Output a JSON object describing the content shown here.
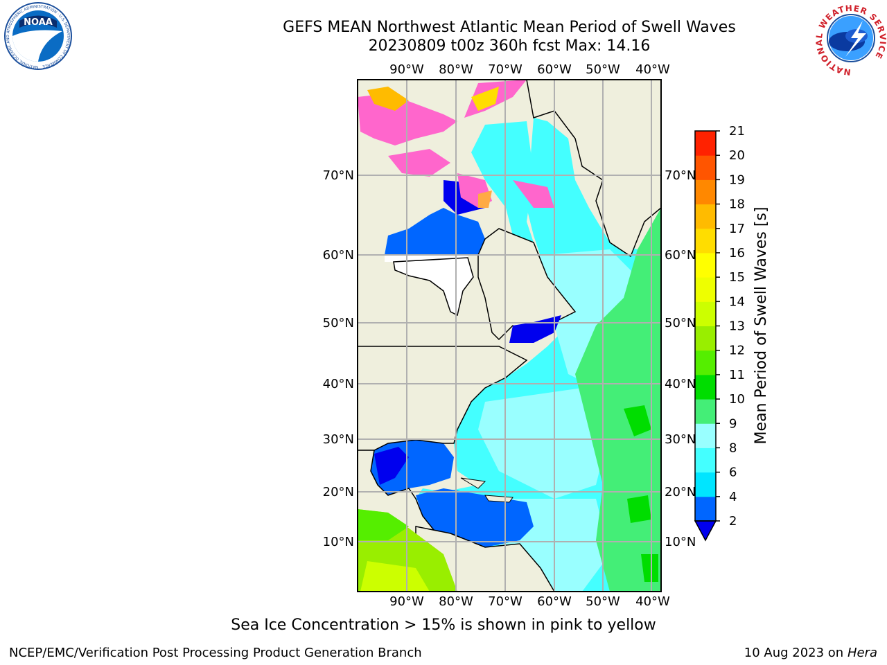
{
  "header": {
    "title_line1": "GEFS MEAN Northwest Atlantic Mean Period of Swell Waves",
    "title_line2": "20230809 t00z 360h fcst   Max: 14.16"
  },
  "logos": {
    "noaa_text": "NOAA",
    "noaa_ring_text": "NATIONAL OCEANIC AND ATMOSPHERIC ADMINISTRATION · U.S. DEPARTMENT OF COMMERCE",
    "nws_ring_text": "NATIONAL WEATHER SERVICE"
  },
  "map": {
    "lon_labels": [
      "90°W",
      "80°W",
      "70°W",
      "60°W",
      "50°W",
      "40°W"
    ],
    "lat_labels": [
      "70°N",
      "60°N",
      "50°N",
      "40°N",
      "30°N",
      "20°N",
      "10°N"
    ]
  },
  "colorbar": {
    "label": "Mean Period of Swell Waves [s]",
    "ticks": [
      "2",
      "4",
      "6",
      "8",
      "9",
      "10",
      "11",
      "12",
      "13",
      "14",
      "15",
      "16",
      "17",
      "18",
      "19",
      "20",
      "21"
    ],
    "colors": [
      "#0066ff",
      "#00e5ff",
      "#44ffff",
      "#99ffff",
      "#44ee77",
      "#00dd00",
      "#55ee00",
      "#99ee00",
      "#ccff00",
      "#eeff00",
      "#ffff00",
      "#ffdd00",
      "#ffbb00",
      "#ff8800",
      "#ff5500",
      "#ff2200"
    ],
    "under_color": "#0000ee"
  },
  "note": "Sea Ice Concentration > 15% is shown in pink to yellow",
  "footer": {
    "left": "NCEP/EMC/Verification Post Processing Product Generation Branch",
    "right_date": "10 Aug 2023 on",
    "right_host": "Hera"
  }
}
